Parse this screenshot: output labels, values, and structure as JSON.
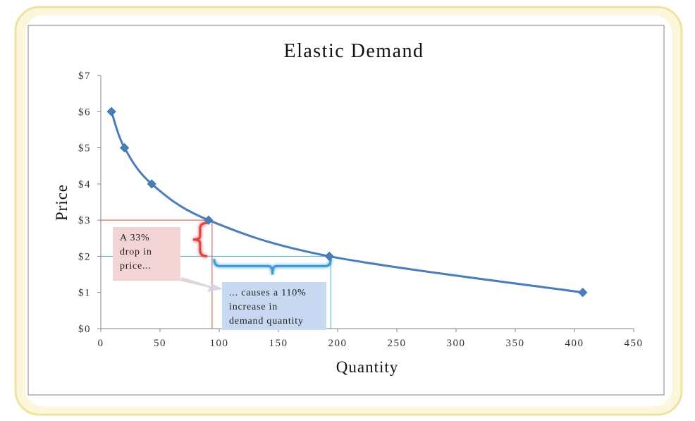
{
  "chart_data": {
    "type": "scatter",
    "title": "Elastic Demand",
    "xlabel": "Quantity",
    "ylabel": "Price",
    "xlim": [
      0,
      450
    ],
    "ylim": [
      0,
      7
    ],
    "x_ticks": [
      "0",
      "50",
      "100",
      "150",
      "200",
      "250",
      "300",
      "350",
      "400",
      "450"
    ],
    "y_ticks": [
      "$0",
      "$1",
      "$2",
      "$3",
      "$4",
      "$5",
      "$6",
      "$7"
    ],
    "grid": false,
    "smooth_line": true,
    "series": [
      {
        "color": "#4a7ebb",
        "points": [
          {
            "x": 9,
            "y": 6
          },
          {
            "x": 20,
            "y": 5
          },
          {
            "x": 43,
            "y": 4
          },
          {
            "x": 91,
            "y": 3
          },
          {
            "x": 193,
            "y": 2
          },
          {
            "x": 407,
            "y": 1
          }
        ]
      }
    ],
    "annotations": [
      {
        "text": "A 33% drop in price...",
        "color": "#f2d4d4"
      },
      {
        "text": "... causes a 110% increase in demand quantity",
        "color": "#c7d8f0"
      }
    ]
  },
  "notes": {
    "drop_lines": [
      "A 33%",
      "drop in",
      "price..."
    ],
    "increase_lines": [
      "... causes a 110%",
      "increase in",
      "demand quantity"
    ]
  },
  "colors": {
    "frame_outer": "#f3e6a6",
    "frame_inner": "#fbf5d8",
    "curve": "#4a7ebb",
    "red_guide": "#c0504d",
    "blue_guide": "#4bacc6"
  }
}
